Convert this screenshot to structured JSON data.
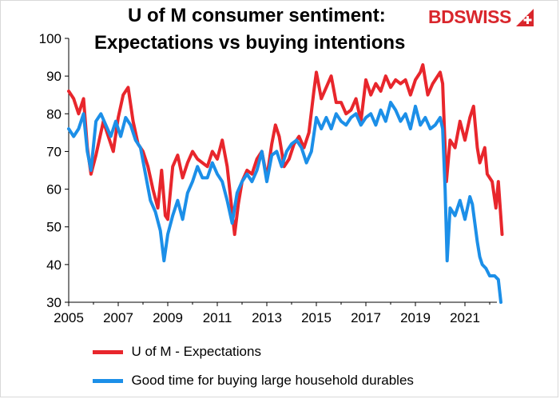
{
  "logo": {
    "text": "BDSWISS"
  },
  "chart_data": {
    "type": "line",
    "title": "U of M consumer sentiment:",
    "subtitle": "Expectations vs buying intentions",
    "xlabel": "",
    "ylabel": "",
    "xlim": [
      2005,
      2022.5
    ],
    "ylim": [
      30,
      100
    ],
    "x_ticks": [
      "2005",
      "2007",
      "2009",
      "2011",
      "2013",
      "2015",
      "2017",
      "2019",
      "2021"
    ],
    "y_ticks": [
      "30",
      "40",
      "50",
      "60",
      "70",
      "80",
      "90",
      "100"
    ],
    "grid": false,
    "legend_position": "bottom",
    "series": [
      {
        "name": "U of M - Expectations",
        "color": "#e8262c",
        "points": [
          [
            2005.0,
            86
          ],
          [
            2005.2,
            84
          ],
          [
            2005.4,
            80
          ],
          [
            2005.6,
            84
          ],
          [
            2005.75,
            71
          ],
          [
            2005.9,
            64
          ],
          [
            2006.1,
            69
          ],
          [
            2006.4,
            78
          ],
          [
            2006.6,
            74
          ],
          [
            2006.8,
            70
          ],
          [
            2007.0,
            79
          ],
          [
            2007.2,
            85
          ],
          [
            2007.4,
            87
          ],
          [
            2007.6,
            78
          ],
          [
            2007.8,
            72
          ],
          [
            2008.0,
            70
          ],
          [
            2008.2,
            66
          ],
          [
            2008.4,
            60
          ],
          [
            2008.6,
            55
          ],
          [
            2008.75,
            65
          ],
          [
            2008.9,
            53
          ],
          [
            2009.0,
            52
          ],
          [
            2009.2,
            66
          ],
          [
            2009.4,
            69
          ],
          [
            2009.6,
            63
          ],
          [
            2009.8,
            67
          ],
          [
            2010.0,
            70
          ],
          [
            2010.2,
            68
          ],
          [
            2010.4,
            67
          ],
          [
            2010.6,
            66
          ],
          [
            2010.8,
            70
          ],
          [
            2011.0,
            68
          ],
          [
            2011.2,
            73
          ],
          [
            2011.4,
            66
          ],
          [
            2011.55,
            57
          ],
          [
            2011.7,
            48
          ],
          [
            2011.85,
            56
          ],
          [
            2012.0,
            62
          ],
          [
            2012.2,
            65
          ],
          [
            2012.4,
            64
          ],
          [
            2012.6,
            68
          ],
          [
            2012.8,
            70
          ],
          [
            2013.0,
            63
          ],
          [
            2013.2,
            72
          ],
          [
            2013.35,
            77
          ],
          [
            2013.5,
            74
          ],
          [
            2013.7,
            66
          ],
          [
            2013.9,
            68
          ],
          [
            2014.1,
            72
          ],
          [
            2014.3,
            74
          ],
          [
            2014.5,
            71
          ],
          [
            2014.7,
            75
          ],
          [
            2014.9,
            86
          ],
          [
            2015.0,
            91
          ],
          [
            2015.2,
            84
          ],
          [
            2015.4,
            87
          ],
          [
            2015.6,
            90
          ],
          [
            2015.8,
            83
          ],
          [
            2016.0,
            83
          ],
          [
            2016.2,
            80
          ],
          [
            2016.4,
            81
          ],
          [
            2016.6,
            84
          ],
          [
            2016.8,
            78
          ],
          [
            2017.0,
            89
          ],
          [
            2017.2,
            85
          ],
          [
            2017.4,
            88
          ],
          [
            2017.6,
            86
          ],
          [
            2017.8,
            90
          ],
          [
            2018.0,
            87
          ],
          [
            2018.2,
            89
          ],
          [
            2018.4,
            88
          ],
          [
            2018.6,
            89
          ],
          [
            2018.8,
            85
          ],
          [
            2019.0,
            89
          ],
          [
            2019.2,
            91
          ],
          [
            2019.3,
            93
          ],
          [
            2019.5,
            85
          ],
          [
            2019.7,
            88
          ],
          [
            2019.9,
            90
          ],
          [
            2020.0,
            91
          ],
          [
            2020.1,
            88
          ],
          [
            2020.25,
            62
          ],
          [
            2020.4,
            73
          ],
          [
            2020.6,
            71
          ],
          [
            2020.8,
            78
          ],
          [
            2021.0,
            73
          ],
          [
            2021.2,
            79
          ],
          [
            2021.35,
            82
          ],
          [
            2021.5,
            71
          ],
          [
            2021.6,
            67
          ],
          [
            2021.8,
            71
          ],
          [
            2021.9,
            64
          ],
          [
            2022.1,
            62
          ],
          [
            2022.25,
            55
          ],
          [
            2022.35,
            62
          ],
          [
            2022.5,
            48
          ]
        ]
      },
      {
        "name": "Good time for buying large household durables",
        "color": "#1c8fe8",
        "points": [
          [
            2005.0,
            76
          ],
          [
            2005.2,
            74
          ],
          [
            2005.4,
            76
          ],
          [
            2005.6,
            80
          ],
          [
            2005.75,
            70
          ],
          [
            2005.9,
            65
          ],
          [
            2006.1,
            78
          ],
          [
            2006.3,
            80
          ],
          [
            2006.5,
            77
          ],
          [
            2006.7,
            74
          ],
          [
            2006.9,
            78
          ],
          [
            2007.1,
            74
          ],
          [
            2007.3,
            79
          ],
          [
            2007.5,
            77
          ],
          [
            2007.7,
            73
          ],
          [
            2007.9,
            71
          ],
          [
            2008.1,
            64
          ],
          [
            2008.3,
            57
          ],
          [
            2008.5,
            54
          ],
          [
            2008.7,
            49
          ],
          [
            2008.85,
            41
          ],
          [
            2009.0,
            48
          ],
          [
            2009.2,
            53
          ],
          [
            2009.4,
            57
          ],
          [
            2009.6,
            52
          ],
          [
            2009.8,
            59
          ],
          [
            2010.0,
            62
          ],
          [
            2010.2,
            66
          ],
          [
            2010.4,
            63
          ],
          [
            2010.6,
            63
          ],
          [
            2010.8,
            67
          ],
          [
            2011.0,
            64
          ],
          [
            2011.2,
            62
          ],
          [
            2011.4,
            57
          ],
          [
            2011.6,
            51
          ],
          [
            2011.8,
            59
          ],
          [
            2012.0,
            62
          ],
          [
            2012.2,
            64
          ],
          [
            2012.4,
            62
          ],
          [
            2012.6,
            65
          ],
          [
            2012.8,
            70
          ],
          [
            2013.0,
            62
          ],
          [
            2013.2,
            69
          ],
          [
            2013.4,
            70
          ],
          [
            2013.6,
            66
          ],
          [
            2013.8,
            70
          ],
          [
            2014.0,
            72
          ],
          [
            2014.2,
            73
          ],
          [
            2014.4,
            71
          ],
          [
            2014.6,
            67
          ],
          [
            2014.8,
            70
          ],
          [
            2015.0,
            79
          ],
          [
            2015.2,
            76
          ],
          [
            2015.4,
            79
          ],
          [
            2015.6,
            76
          ],
          [
            2015.8,
            80
          ],
          [
            2016.0,
            78
          ],
          [
            2016.2,
            77
          ],
          [
            2016.4,
            79
          ],
          [
            2016.6,
            80
          ],
          [
            2016.8,
            77
          ],
          [
            2017.0,
            79
          ],
          [
            2017.2,
            80
          ],
          [
            2017.4,
            77
          ],
          [
            2017.6,
            81
          ],
          [
            2017.8,
            78
          ],
          [
            2018.0,
            83
          ],
          [
            2018.2,
            81
          ],
          [
            2018.4,
            78
          ],
          [
            2018.6,
            80
          ],
          [
            2018.8,
            76
          ],
          [
            2019.0,
            82
          ],
          [
            2019.2,
            77
          ],
          [
            2019.4,
            79
          ],
          [
            2019.6,
            76
          ],
          [
            2019.8,
            77
          ],
          [
            2020.0,
            79
          ],
          [
            2020.1,
            76
          ],
          [
            2020.2,
            60
          ],
          [
            2020.28,
            41
          ],
          [
            2020.4,
            55
          ],
          [
            2020.6,
            53
          ],
          [
            2020.8,
            57
          ],
          [
            2021.0,
            52
          ],
          [
            2021.2,
            58
          ],
          [
            2021.3,
            56
          ],
          [
            2021.4,
            51
          ],
          [
            2021.5,
            46
          ],
          [
            2021.6,
            42
          ],
          [
            2021.7,
            40
          ],
          [
            2021.85,
            39
          ],
          [
            2022.0,
            37
          ],
          [
            2022.2,
            37
          ],
          [
            2022.35,
            36
          ],
          [
            2022.45,
            30
          ]
        ]
      }
    ]
  }
}
